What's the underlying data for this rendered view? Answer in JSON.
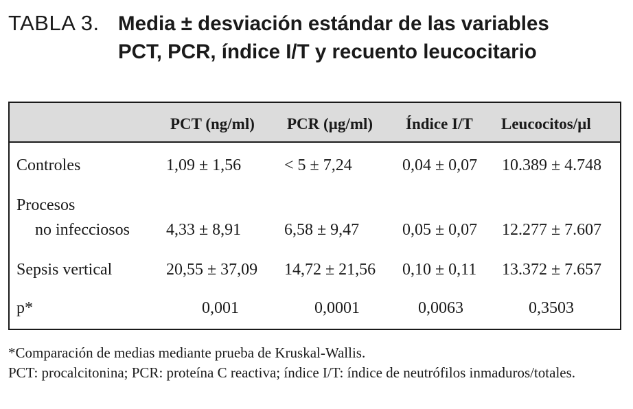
{
  "title": {
    "label": "TABLA 3.",
    "line1": "Media ± desviación estándar de las variables",
    "line2": "PCT, PCR, índice I/T y recuento leucocitario"
  },
  "table": {
    "headers": [
      "",
      "PCT (ng/ml)",
      "PCR (µg/ml)",
      "Índice I/T",
      "Leucocitos/µl"
    ],
    "rows": [
      {
        "label": "Controles",
        "values": [
          "1,09 ± 1,56",
          "< 5 ± 7,24",
          "0,04 ± 0,07",
          "10.389 ± 4.748"
        ]
      },
      {
        "label_line1": "Procesos",
        "label_line2": "no infecciosos",
        "values": [
          "4,33 ± 8,91",
          "6,58 ± 9,47",
          "0,05 ± 0,07",
          "12.277 ± 7.607"
        ]
      },
      {
        "label": "Sepsis vertical",
        "values": [
          "20,55 ± 37,09",
          "14,72 ± 21,56",
          "0,10 ± 0,11",
          "13.372 ± 7.657"
        ]
      },
      {
        "label": "p*",
        "values": [
          "0,001",
          "0,0001",
          "0,0063",
          "0,3503"
        ]
      }
    ]
  },
  "footnotes": {
    "line1": "*Comparación de medias mediante prueba de Kruskal-Wallis.",
    "line2": "PCT: procalcitonina; PCR: proteína C reactiva; índice I/T: índice de neutrófilos inmaduros/totales."
  }
}
